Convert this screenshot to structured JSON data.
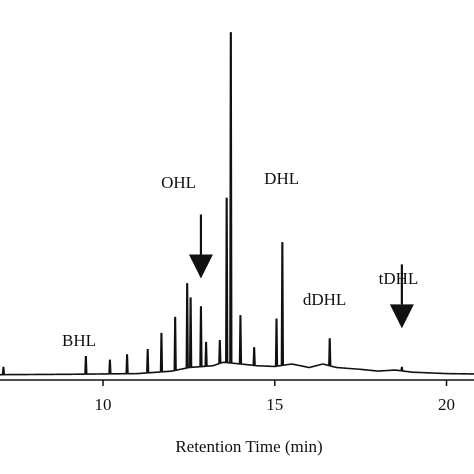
{
  "chart_data": {
    "type": "line",
    "title": "",
    "xlabel": "Retention Time (min)",
    "ylabel": "",
    "xlim": [
      7,
      20.8
    ],
    "ylim": [
      0,
      100
    ],
    "x_ticks": [
      10,
      15,
      20
    ],
    "grid": false,
    "legend": "none",
    "colors": {
      "line": "#111111",
      "axis": "#111111"
    },
    "baseline": [
      {
        "x": 7.0,
        "y": 1.5
      },
      {
        "x": 9.0,
        "y": 1.6
      },
      {
        "x": 11.0,
        "y": 1.8
      },
      {
        "x": 12.0,
        "y": 2.5
      },
      {
        "x": 12.5,
        "y": 3.5
      },
      {
        "x": 13.2,
        "y": 4.0
      },
      {
        "x": 13.5,
        "y": 5.0
      },
      {
        "x": 14.0,
        "y": 4.5
      },
      {
        "x": 14.5,
        "y": 4.0
      },
      {
        "x": 15.0,
        "y": 3.8
      },
      {
        "x": 15.5,
        "y": 4.5
      },
      {
        "x": 16.0,
        "y": 3.5
      },
      {
        "x": 16.4,
        "y": 4.5
      },
      {
        "x": 16.8,
        "y": 3.5
      },
      {
        "x": 17.5,
        "y": 3.0
      },
      {
        "x": 18.0,
        "y": 2.5
      },
      {
        "x": 18.5,
        "y": 2.8
      },
      {
        "x": 19.0,
        "y": 2.2
      },
      {
        "x": 20.0,
        "y": 1.8
      },
      {
        "x": 20.8,
        "y": 1.7
      }
    ],
    "peaks": [
      {
        "x": 7.1,
        "y": 3.5
      },
      {
        "x": 9.5,
        "y": 6.5
      },
      {
        "x": 10.2,
        "y": 5.5
      },
      {
        "x": 10.7,
        "y": 7.0
      },
      {
        "x": 11.3,
        "y": 8.5
      },
      {
        "x": 11.7,
        "y": 13.0
      },
      {
        "x": 12.1,
        "y": 17.5
      },
      {
        "x": 12.45,
        "y": 27.0
      },
      {
        "x": 12.55,
        "y": 23.0
      },
      {
        "x": 12.85,
        "y": 20.5
      },
      {
        "x": 13.0,
        "y": 10.5
      },
      {
        "x": 13.4,
        "y": 11.0
      },
      {
        "x": 13.6,
        "y": 51.0
      },
      {
        "x": 13.72,
        "y": 97.5
      },
      {
        "x": 14.0,
        "y": 18.0
      },
      {
        "x": 14.4,
        "y": 9.0
      },
      {
        "x": 15.05,
        "y": 17.0
      },
      {
        "x": 15.22,
        "y": 38.5
      },
      {
        "x": 16.6,
        "y": 11.5
      },
      {
        "x": 18.7,
        "y": 3.5
      }
    ],
    "annotations": [
      {
        "label": "BHL",
        "x": 9.3,
        "y": 9.5,
        "arrow": false
      },
      {
        "label": "OHL",
        "x": 12.2,
        "y": 54.0,
        "arrow": false
      },
      {
        "label": "",
        "x": 12.85,
        "y": 28.5,
        "arrow": true
      },
      {
        "label": "DHL",
        "x": 15.2,
        "y": 55.0,
        "arrow": false
      },
      {
        "label": "dDHL",
        "x": 16.45,
        "y": 21.0,
        "arrow": false
      },
      {
        "label": "tDHL",
        "x": 18.6,
        "y": 27.0,
        "arrow": false
      },
      {
        "label": "",
        "x": 18.7,
        "y": 14.5,
        "arrow": true
      }
    ]
  }
}
